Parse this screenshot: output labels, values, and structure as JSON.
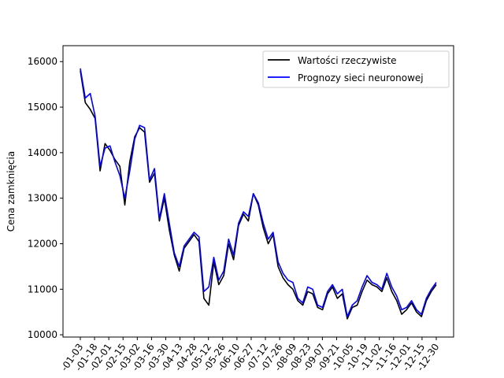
{
  "chart_data": {
    "type": "line",
    "ylabel": "Cena zamknięcia",
    "xlabel": "",
    "ylim": [
      9950,
      16350
    ],
    "legend_position": "top-right",
    "grid": false,
    "yticks": [
      10000,
      11000,
      12000,
      13000,
      14000,
      15000,
      16000
    ],
    "ytick_labels": [
      "10000",
      "11000",
      "12000",
      "13000",
      "14000",
      "15000",
      "16000"
    ],
    "xtick_labels": [
      "-01-03",
      "-01-18",
      "-02-01",
      "-02-15",
      "-03-02",
      "-03-16",
      "-03-30",
      "-04-13",
      "-04-28",
      "-05-12",
      "-05-26",
      "-06-10",
      "-06-27",
      "-07-12",
      "-07-26",
      "-08-09",
      "-08-23",
      "-09-07",
      "-09-21",
      "-10-05",
      "-10-19",
      "-11-02",
      "-11-16",
      "-12-01",
      "-12-15",
      "-12-30"
    ],
    "x": [
      0,
      5,
      10,
      15,
      20,
      25,
      30,
      35,
      40,
      45,
      50,
      55,
      60,
      65,
      70,
      75,
      80,
      85,
      90,
      95,
      100,
      105,
      110,
      115,
      120,
      125,
      130,
      135,
      140,
      145,
      150,
      155,
      160,
      165,
      170,
      175,
      180,
      185,
      190,
      195,
      200,
      205,
      210,
      215,
      220,
      225,
      230,
      235,
      240,
      245,
      250,
      255,
      260,
      265,
      270,
      275,
      280,
      285,
      290,
      295,
      300,
      305,
      310,
      315,
      320,
      325,
      330,
      335,
      340,
      345,
      350,
      355,
      360
    ],
    "series": [
      {
        "name": "Wartości rzeczywiste",
        "color": "#000000",
        "values": [
          15800,
          15100,
          14950,
          14750,
          13600,
          14200,
          14050,
          13850,
          13700,
          12850,
          13800,
          14350,
          14550,
          14450,
          13350,
          13550,
          12500,
          13000,
          12300,
          11750,
          11400,
          11900,
          12050,
          12200,
          12050,
          10800,
          10650,
          11600,
          11100,
          11300,
          12000,
          11650,
          12400,
          12650,
          12500,
          13100,
          12850,
          12350,
          12000,
          12200,
          11500,
          11250,
          11100,
          11000,
          10750,
          10650,
          10950,
          10900,
          10600,
          10550,
          10900,
          11050,
          10800,
          10900,
          10350,
          10600,
          10650,
          10950,
          11200,
          11100,
          11050,
          10950,
          11250,
          10950,
          10750,
          10450,
          10550,
          10700,
          10500,
          10400,
          10750,
          10950,
          11100
        ]
      },
      {
        "name": "Prognozy sieci neuronowej",
        "color": "#0000ff",
        "values": [
          15850,
          15200,
          15300,
          14800,
          13700,
          14100,
          14150,
          13800,
          13500,
          13000,
          13600,
          14300,
          14600,
          14550,
          13400,
          13650,
          12550,
          13100,
          12450,
          11800,
          11500,
          11950,
          12100,
          12250,
          12150,
          10950,
          11050,
          11700,
          11200,
          11400,
          12100,
          11750,
          12450,
          12700,
          12600,
          13100,
          12900,
          12450,
          12100,
          12250,
          11600,
          11350,
          11200,
          11150,
          10800,
          10700,
          11050,
          11000,
          10650,
          10600,
          10950,
          11100,
          10900,
          11000,
          10400,
          10650,
          10750,
          11050,
          11300,
          11150,
          11100,
          11000,
          11350,
          11050,
          10850,
          10550,
          10600,
          10750,
          10550,
          10450,
          10800,
          11000,
          11150
        ]
      }
    ]
  }
}
